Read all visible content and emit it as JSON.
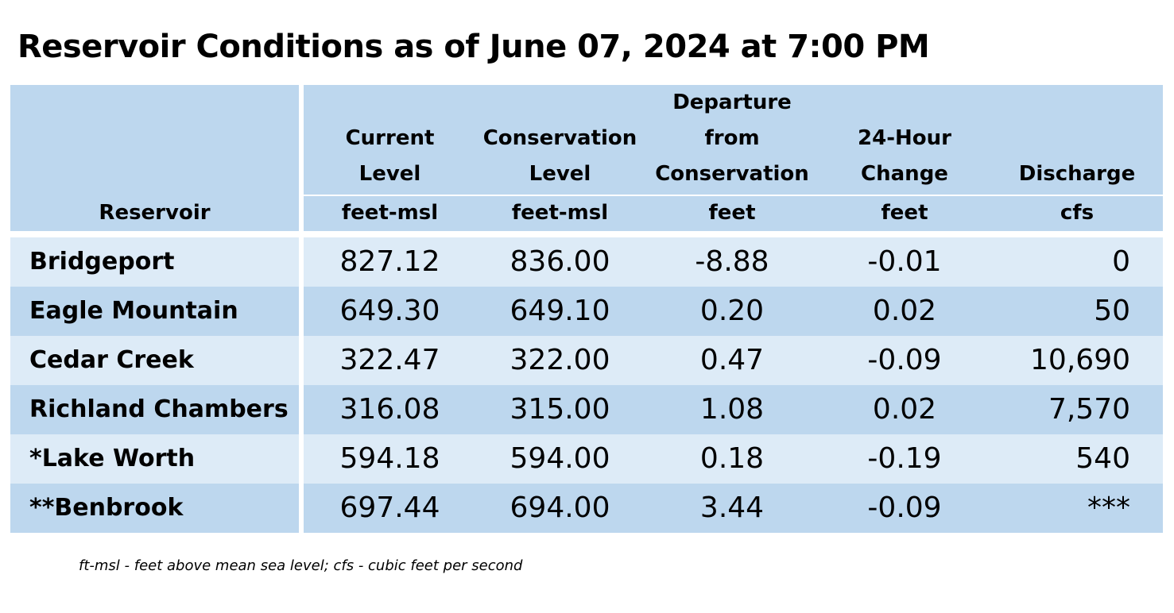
{
  "title": "Reservoir Conditions as of June 07, 2024 at 7:00 PM",
  "header": {
    "reservoir": "Reservoir",
    "columns": [
      {
        "lines": [
          "Current",
          "Level"
        ],
        "unit": "feet-msl"
      },
      {
        "lines": [
          "Conservation",
          "Level"
        ],
        "unit": "feet-msl"
      },
      {
        "lines": [
          "Departure",
          "from",
          "Conservation"
        ],
        "unit": "feet"
      },
      {
        "lines": [
          "24-Hour",
          "Change"
        ],
        "unit": "feet"
      },
      {
        "lines": [
          "Discharge"
        ],
        "unit": "cfs"
      }
    ]
  },
  "rows": [
    {
      "name": "Bridgeport",
      "current": "827.12",
      "conservation": "836.00",
      "departure": "-8.88",
      "change": "-0.01",
      "discharge": "0"
    },
    {
      "name": "Eagle Mountain",
      "current": "649.30",
      "conservation": "649.10",
      "departure": "0.20",
      "change": "0.02",
      "discharge": "50"
    },
    {
      "name": "Cedar Creek",
      "current": "322.47",
      "conservation": "322.00",
      "departure": "0.47",
      "change": "-0.09",
      "discharge": "10,690"
    },
    {
      "name": "Richland Chambers",
      "current": "316.08",
      "conservation": "315.00",
      "departure": "1.08",
      "change": "0.02",
      "discharge": "7,570"
    },
    {
      "name": "*Lake Worth",
      "current": "594.18",
      "conservation": "594.00",
      "departure": "0.18",
      "change": "-0.19",
      "discharge": "540"
    },
    {
      "name": "**Benbrook",
      "current": "697.44",
      "conservation": "694.00",
      "departure": "3.44",
      "change": "-0.09",
      "discharge": "***"
    }
  ],
  "footnote": "ft-msl - feet above mean sea level; cfs - cubic feet per second",
  "colors": {
    "header_bg": "#bdd7ee",
    "row_light": "#ddebf7",
    "row_dark": "#bdd7ee",
    "divider": "#ffffff"
  }
}
